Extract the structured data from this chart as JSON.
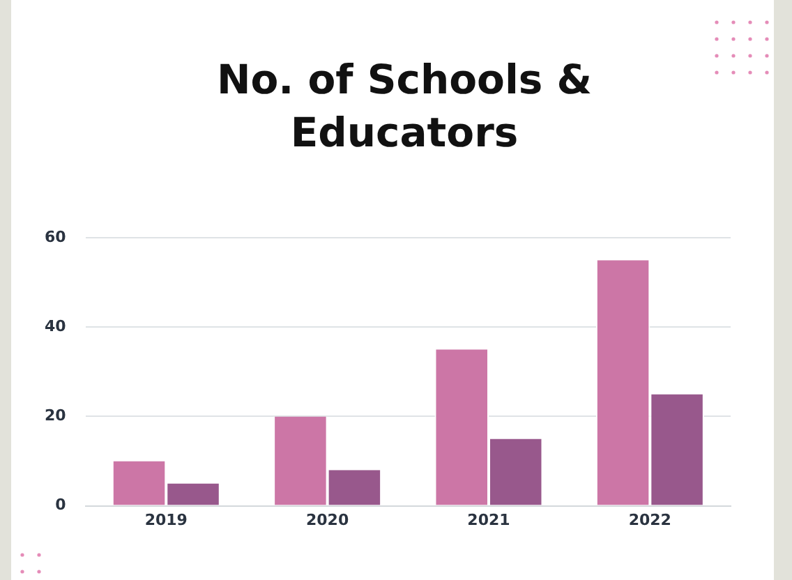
{
  "chart_data": {
    "type": "bar",
    "title": "No. of Schools & Educators",
    "categories": [
      "2019",
      "2020",
      "2021",
      "2022"
    ],
    "series": [
      {
        "color": "#cc76a6",
        "values": [
          10,
          20,
          35,
          55
        ]
      },
      {
        "color": "#98588c",
        "values": [
          5,
          8,
          15,
          25
        ]
      }
    ],
    "ylim": [
      0,
      60
    ],
    "yticks": [
      0,
      20,
      40,
      60
    ],
    "grid": "y",
    "legend": false
  }
}
